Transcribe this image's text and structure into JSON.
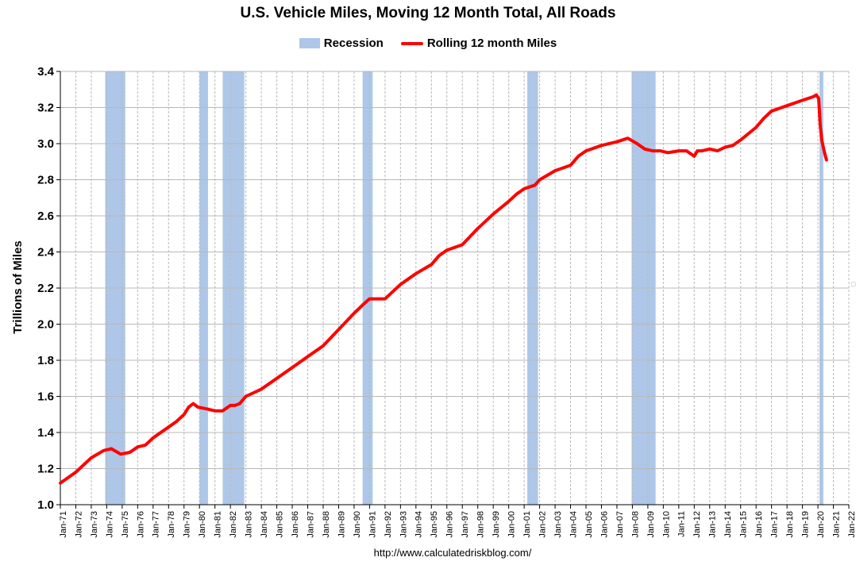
{
  "chart_data": {
    "type": "line",
    "title": "U.S. Vehicle Miles, Moving 12 Month Total, All Roads",
    "xlabel": "",
    "ylabel": "Trillions of Miles",
    "ylim": [
      1.0,
      3.4
    ],
    "yticks": [
      "1.0",
      "1.2",
      "1.4",
      "1.6",
      "1.8",
      "2.0",
      "2.2",
      "2.4",
      "2.6",
      "2.8",
      "3.0",
      "3.2",
      "3.4"
    ],
    "xlim": [
      1971.0,
      2022.0
    ],
    "xticks": [
      "Jan-71",
      "Jan-72",
      "Jan-73",
      "Jan-74",
      "Jan-75",
      "Jan-76",
      "Jan-77",
      "Jan-78",
      "Jan-79",
      "Jan-80",
      "Jan-81",
      "Jan-82",
      "Jan-83",
      "Jan-84",
      "Jan-85",
      "Jan-86",
      "Jan-87",
      "Jan-88",
      "Jan-89",
      "Jan-90",
      "Jan-91",
      "Jan-92",
      "Jan-93",
      "Jan-94",
      "Jan-95",
      "Jan-96",
      "Jan-97",
      "Jan-98",
      "Jan-99",
      "Jan-00",
      "Jan-01",
      "Jan-02",
      "Jan-03",
      "Jan-04",
      "Jan-05",
      "Jan-06",
      "Jan-07",
      "Jan-08",
      "Jan-09",
      "Jan-10",
      "Jan-11",
      "Jan-12",
      "Jan-13",
      "Jan-14",
      "Jan-15",
      "Jan-16",
      "Jan-17",
      "Jan-18",
      "Jan-19",
      "Jan-20",
      "Jan-21",
      "Jan-22"
    ],
    "grid": true,
    "legend": [
      {
        "name": "Recession",
        "kind": "band",
        "color": "#aec7e8"
      },
      {
        "name": "Rolling 12 month Miles",
        "kind": "line",
        "color": "#ff0000"
      }
    ],
    "recessions": [
      [
        1973.9,
        1975.2
      ],
      [
        1980.0,
        1980.55
      ],
      [
        1981.5,
        1982.9
      ],
      [
        1990.55,
        1991.2
      ],
      [
        2001.2,
        2001.9
      ],
      [
        2007.95,
        2009.5
      ],
      [
        2020.1,
        2020.35
      ]
    ],
    "series": [
      {
        "name": "Rolling 12 month Miles",
        "color": "#ff0000",
        "x": [
          1971.0,
          1972.0,
          1973.0,
          1973.8,
          1974.3,
          1974.9,
          1975.5,
          1976.0,
          1976.5,
          1977.0,
          1978.0,
          1978.5,
          1979.0,
          1979.3,
          1979.6,
          1979.9,
          1980.5,
          1981.0,
          1981.5,
          1982.0,
          1982.3,
          1982.6,
          1983.0,
          1984.0,
          1985.0,
          1986.0,
          1987.0,
          1988.0,
          1989.0,
          1990.0,
          1990.6,
          1991.0,
          1992.0,
          1993.0,
          1994.0,
          1995.0,
          1995.5,
          1996.0,
          1997.0,
          1998.0,
          1999.0,
          2000.0,
          2000.5,
          2001.0,
          2001.7,
          2002.0,
          2003.0,
          2004.0,
          2004.5,
          2005.0,
          2006.0,
          2007.0,
          2007.7,
          2008.3,
          2008.8,
          2009.3,
          2009.8,
          2010.3,
          2011.0,
          2011.5,
          2012.0,
          2012.2,
          2012.5,
          2013.0,
          2013.5,
          2014.0,
          2014.5,
          2015.0,
          2016.0,
          2016.5,
          2017.0,
          2018.0,
          2019.0,
          2019.7,
          2019.9,
          2020.05,
          2020.15,
          2020.25,
          2020.4,
          2020.55
        ],
        "values": [
          1.12,
          1.18,
          1.26,
          1.3,
          1.31,
          1.28,
          1.29,
          1.32,
          1.33,
          1.37,
          1.43,
          1.46,
          1.5,
          1.54,
          1.56,
          1.54,
          1.53,
          1.52,
          1.52,
          1.55,
          1.55,
          1.56,
          1.6,
          1.64,
          1.7,
          1.76,
          1.82,
          1.88,
          1.97,
          2.06,
          2.11,
          2.14,
          2.14,
          2.22,
          2.28,
          2.33,
          2.38,
          2.41,
          2.44,
          2.53,
          2.61,
          2.68,
          2.72,
          2.75,
          2.77,
          2.8,
          2.85,
          2.88,
          2.93,
          2.96,
          2.99,
          3.01,
          3.03,
          3.0,
          2.97,
          2.96,
          2.96,
          2.95,
          2.96,
          2.96,
          2.93,
          2.96,
          2.96,
          2.97,
          2.96,
          2.98,
          2.99,
          3.02,
          3.09,
          3.14,
          3.18,
          3.21,
          3.24,
          3.26,
          3.27,
          3.25,
          3.1,
          3.02,
          2.96,
          2.91
        ]
      }
    ]
  },
  "legend_labels": {
    "recession": "Recession",
    "miles": "Rolling 12 month Miles"
  },
  "source_url": "http://www.calculatedriskblog.com/",
  "edge_mark": "◌"
}
